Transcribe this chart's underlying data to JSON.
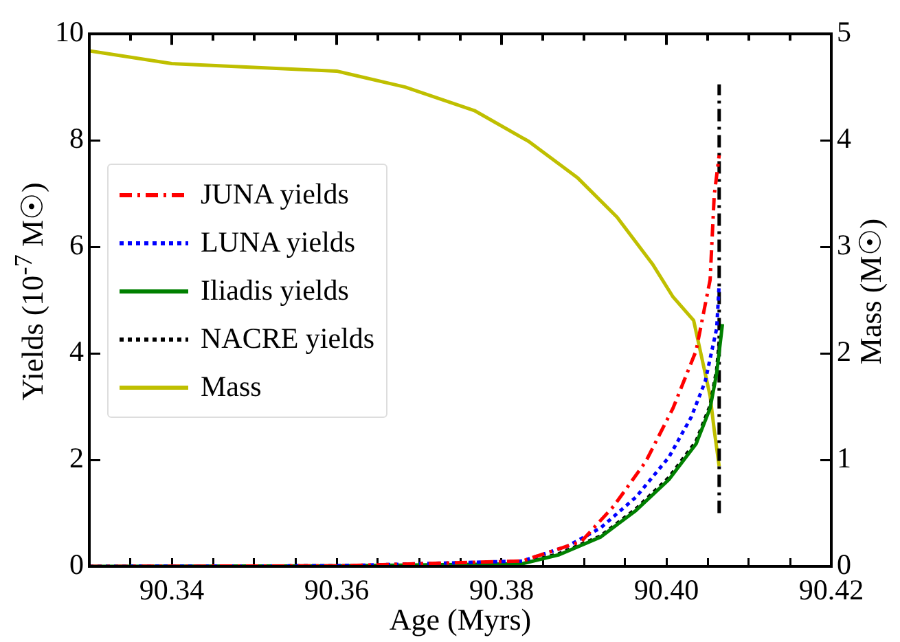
{
  "chart_data": {
    "type": "line",
    "xlabel": "Age (Myrs)",
    "ylabel": "Yields (10$^{-7}$ M☉)",
    "y2label": "Mass (M☉)",
    "xlim": [
      90.33,
      90.42
    ],
    "xticks": [
      {
        "value": 90.33,
        "label": null
      },
      {
        "value": 90.335,
        "label": null
      },
      90.34,
      {
        "value": 90.345,
        "label": null
      },
      {
        "value": 90.35,
        "label": null
      },
      {
        "value": 90.355,
        "label": null
      },
      90.36,
      {
        "value": 90.365,
        "label": null
      },
      {
        "value": 90.37,
        "label": null
      },
      {
        "value": 90.375,
        "label": null
      },
      90.38,
      {
        "value": 90.385,
        "label": null
      },
      {
        "value": 90.39,
        "label": null
      },
      {
        "value": 90.395,
        "label": null
      },
      {
        "value": 90.4,
        "label": "90.40"
      },
      {
        "value": 90.405,
        "label": null
      },
      {
        "value": 90.41,
        "label": null
      },
      {
        "value": 90.415,
        "label": null
      },
      90.42
    ],
    "ylim": [
      0,
      10
    ],
    "yticks": [
      0,
      2,
      4,
      6,
      8,
      10
    ],
    "y2lim": [
      0,
      5
    ],
    "y2ticks": [
      0,
      1,
      2,
      3,
      4,
      5
    ],
    "grid": false,
    "legend": "left",
    "series": [
      {
        "name": "JUNA yields",
        "color": "#ff0000",
        "line_style": "dashed",
        "x": [
          90.33,
          90.36,
          90.3825,
          90.3897,
          90.3936,
          90.3975,
          90.4008,
          90.4036,
          90.4053,
          90.4058,
          90.4064
        ],
        "values": [
          0,
          0.01,
          0.1,
          0.47,
          1.13,
          1.97,
          2.97,
          4.05,
          5.38,
          6.97,
          7.72
        ]
      },
      {
        "name": "LUNA yields",
        "color": "#0000ff",
        "line_style": "dotted",
        "x": [
          90.33,
          90.36,
          90.3825,
          90.388,
          90.392,
          90.3963,
          90.4003,
          90.403,
          90.4047,
          90.4061,
          90.4064
        ],
        "values": [
          0,
          0.01,
          0.1,
          0.38,
          0.72,
          1.3,
          2.05,
          2.8,
          3.47,
          4.47,
          5.3
        ]
      },
      {
        "name": "Iliadis yields",
        "color": "#008000",
        "line_style": "solid",
        "x": [
          90.33,
          90.36,
          90.3825,
          90.387,
          90.392,
          90.3963,
          90.4003,
          90.4036,
          90.4053,
          90.4061,
          90.4068
        ],
        "values": [
          0,
          0.01,
          0.05,
          0.22,
          0.55,
          1.05,
          1.63,
          2.3,
          2.97,
          3.63,
          4.55
        ]
      },
      {
        "name": "NACRE yields",
        "color": "#000000",
        "line_style": "dotted",
        "x": [
          90.33,
          90.36,
          90.3825,
          90.387,
          90.392,
          90.3963,
          90.4003,
          90.4036,
          90.4053,
          90.4061,
          90.4064
        ],
        "values": [
          0,
          0.01,
          0.06,
          0.24,
          0.57,
          1.08,
          1.67,
          2.35,
          3.02,
          3.7,
          4.22
        ]
      },
      {
        "color": "#000000",
        "line_style": "dashed",
        "x": [
          90.4064,
          90.4064
        ],
        "values": [
          1,
          9.05
        ]
      },
      {
        "name": "Mass",
        "color": "#bfbf00",
        "line_style": "solid",
        "axis": "y2",
        "x": [
          90.33,
          90.34,
          90.36,
          90.3683,
          90.3767,
          90.3833,
          90.3892,
          90.394,
          90.3983,
          90.4008,
          90.4033,
          90.4053,
          90.4058,
          90.4064
        ],
        "values": [
          4.84,
          4.72,
          4.65,
          4.5,
          4.28,
          3.99,
          3.65,
          3.28,
          2.84,
          2.53,
          2.31,
          1.6,
          1.28,
          0.94
        ]
      }
    ]
  }
}
